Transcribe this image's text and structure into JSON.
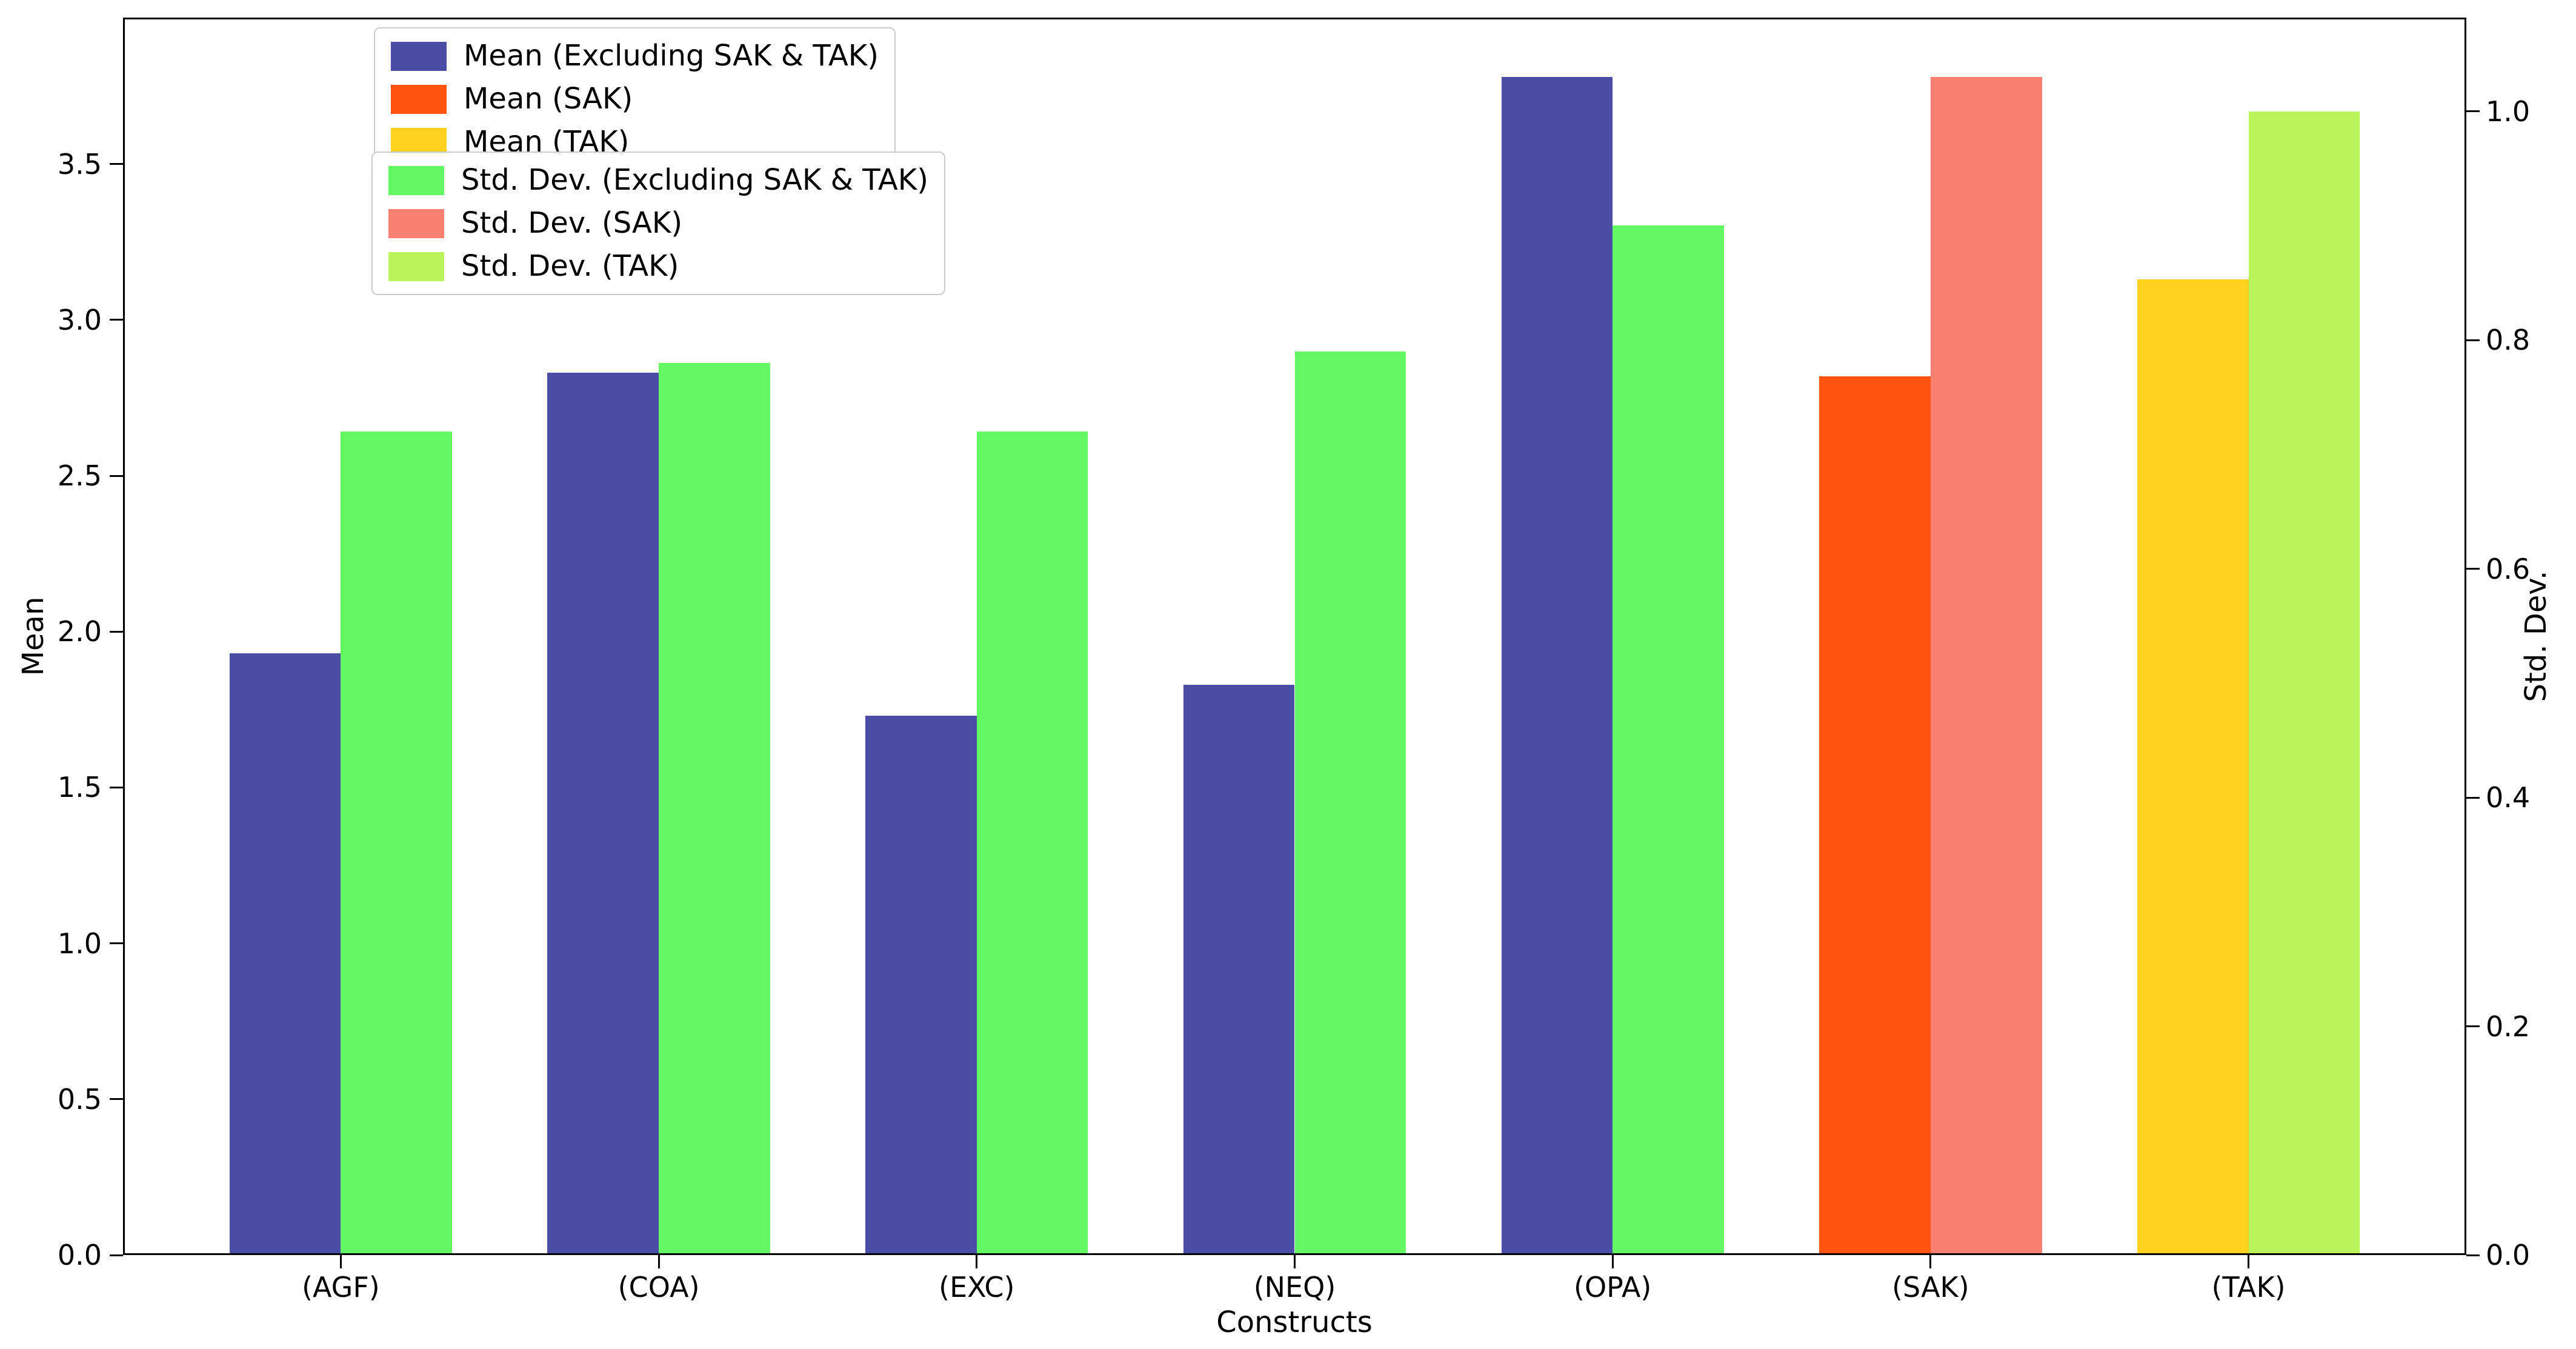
{
  "chart_data": {
    "type": "bar",
    "title": "",
    "xlabel": "Constructs",
    "ylabel_left": "Mean",
    "ylabel_right": "Std. Dev.",
    "categories": [
      "(AGF)",
      "(COA)",
      "(EXC)",
      "(NEQ)",
      "(OPA)",
      "(SAK)",
      "(TAK)"
    ],
    "series": [
      {
        "name": "Mean",
        "axis": "left",
        "values": [
          1.93,
          2.83,
          1.73,
          1.83,
          3.78,
          2.82,
          3.13
        ]
      },
      {
        "name": "Std. Dev.",
        "axis": "right",
        "values": [
          0.72,
          0.78,
          0.72,
          0.79,
          0.9,
          1.03,
          1.0
        ]
      }
    ],
    "mean_colors": [
      "#4B4DA5",
      "#4B4DA5",
      "#4B4DA5",
      "#4B4DA5",
      "#4B4DA5",
      "#FF5310",
      "#FFD21E"
    ],
    "std_colors": [
      "#63F763",
      "#63F763",
      "#63F763",
      "#63F763",
      "#63F763",
      "#FA8072",
      "#B9F559"
    ],
    "left_axis": {
      "ticks": [
        0.0,
        0.5,
        1.0,
        1.5,
        2.0,
        2.5,
        3.0,
        3.5
      ],
      "max": 3.97,
      "tick_format_decimals": 1
    },
    "right_axis": {
      "ticks": [
        0.0,
        0.2,
        0.4,
        0.6,
        0.8,
        1.0
      ],
      "max": 1.082,
      "tick_format_decimals": 1
    },
    "bar_half_width_units": 0.35,
    "x_pad_units": 0.335,
    "grid": false,
    "legend_position": "upper left",
    "legends": [
      {
        "entries": [
          {
            "label": "Mean (Excluding SAK & TAK)",
            "color": "#4B4DA5"
          },
          {
            "label": "Mean (SAK)",
            "color": "#FF5310"
          },
          {
            "label": "Mean (TAK)",
            "color": "#FFD21E"
          }
        ]
      },
      {
        "entries": [
          {
            "label": "Std. Dev. (Excluding SAK & TAK)",
            "color": "#63F763"
          },
          {
            "label": "Std. Dev. (SAK)",
            "color": "#FA8072"
          },
          {
            "label": "Std. Dev. (TAK)",
            "color": "#B9F559"
          }
        ]
      }
    ]
  }
}
